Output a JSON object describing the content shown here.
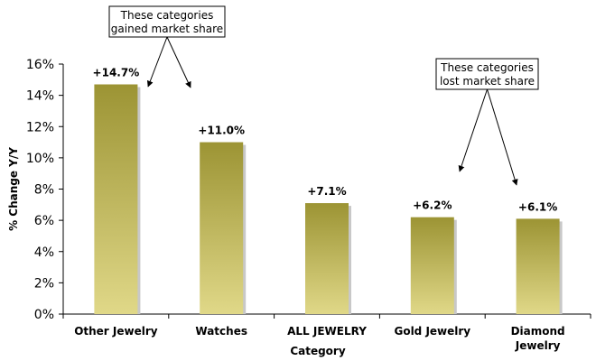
{
  "chart_data": {
    "type": "bar",
    "categories": [
      "Other Jewelry",
      "Watches",
      "ALL JEWELRY",
      "Gold Jewelry",
      "Diamond Jewelry"
    ],
    "category_lines": [
      [
        "Other Jewelry"
      ],
      [
        "Watches"
      ],
      [
        "ALL JEWELRY"
      ],
      [
        "Gold Jewelry"
      ],
      [
        "Diamond",
        "Jewelry"
      ]
    ],
    "values": [
      14.7,
      11.0,
      7.1,
      6.2,
      6.1
    ],
    "value_labels": [
      "+14.7%",
      "+11.0%",
      "+7.1%",
      "+6.2%",
      "+6.1%"
    ],
    "xlabel": "Category",
    "ylabel": "% Change Y/Y",
    "ylim": [
      0,
      16
    ],
    "yticks": [
      0,
      2,
      4,
      6,
      8,
      10,
      12,
      14,
      16
    ],
    "ytick_labels": [
      "0%",
      "2%",
      "4%",
      "6%",
      "8%",
      "10%",
      "12%",
      "14%",
      "16%"
    ],
    "grid": false,
    "legend": "none",
    "bar_color_top": "#9c9434",
    "bar_color_bottom": "#e0d888",
    "annotations": [
      {
        "lines": [
          "These categories",
          "gained market share"
        ],
        "targets": [
          0,
          1
        ]
      },
      {
        "lines": [
          "These categories",
          "lost market share"
        ],
        "targets": [
          3,
          4
        ]
      }
    ]
  }
}
